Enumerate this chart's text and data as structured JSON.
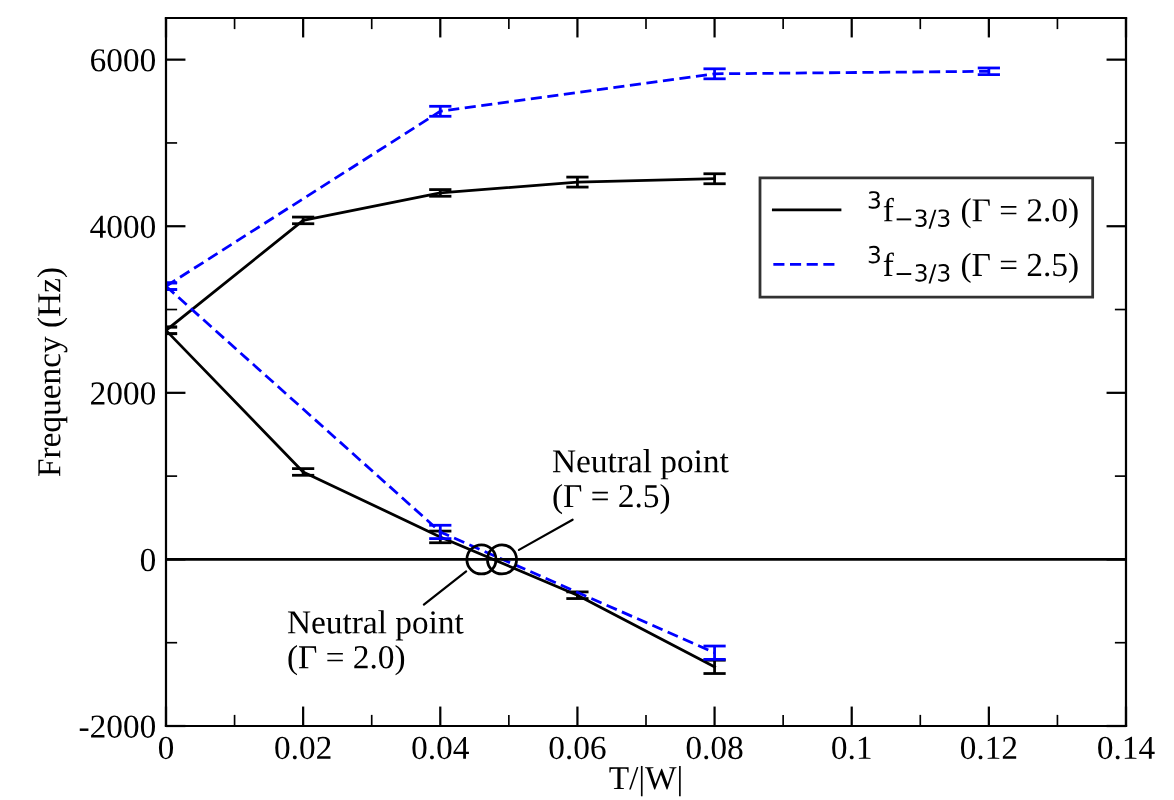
{
  "chart_data": {
    "type": "line",
    "xlabel": "T/|W|",
    "ylabel": "Frequency (Hz)",
    "series": [
      {
        "name": "$^{3}$f$_{−3/3}$ (Γ = 2.0)",
        "color": "#000000",
        "line_style": "solid",
        "x": [
          0,
          0.02,
          0.04,
          0.06,
          0.08
        ],
        "values": [
          2750,
          4070,
          4400,
          4530,
          4570
        ],
        "errors": [
          40,
          40,
          40,
          60,
          60
        ]
      },
      {
        "name": "$^{3}$f$_{−3/3}$ (Γ = 2.5)",
        "color": "#0000ff",
        "line_style": "dashed",
        "x": [
          0,
          0.04,
          0.08,
          0.12
        ],
        "values": [
          3280,
          5380,
          5830,
          5860
        ],
        "errors": [
          40,
          60,
          60,
          40
        ]
      },
      {
        "color": "#000000",
        "line_style": "solid",
        "x": [
          0,
          0.02,
          0.04,
          0.06,
          0.08
        ],
        "values": [
          2750,
          1050,
          270,
          -430,
          -1290
        ],
        "errors": [
          40,
          40,
          70,
          40,
          80
        ]
      },
      {
        "color": "#0000ff",
        "line_style": "dashed",
        "x": [
          0,
          0.04,
          0.08
        ],
        "values": [
          3280,
          330,
          -1120
        ],
        "errors": [
          40,
          80,
          80
        ]
      },
      {
        "type": "scatter",
        "color": "#000000",
        "marker": "circle",
        "x": [
          0.046,
          0.049
        ],
        "values": [
          0,
          0
        ]
      }
    ],
    "annotations": [
      {
        "text": "Neutral point\n(Γ = 2.0)",
        "x": 0.046,
        "y": 0
      },
      {
        "text": "Neutral point\n(Γ = 2.5)",
        "x": 0.049,
        "y": 0
      }
    ],
    "ref_lines": [
      {
        "axis": "y",
        "value": 0,
        "color": "#000000"
      }
    ],
    "xlim": [
      0,
      0.14
    ],
    "xticks": [
      0,
      0.02,
      0.04,
      0.06,
      0.08,
      0.1,
      0.12,
      0.14
    ],
    "ylim": [
      -2000,
      6500
    ],
    "yticks": [
      -2000,
      0,
      2000,
      4000,
      6000
    ],
    "legend": "right",
    "grid": false
  }
}
